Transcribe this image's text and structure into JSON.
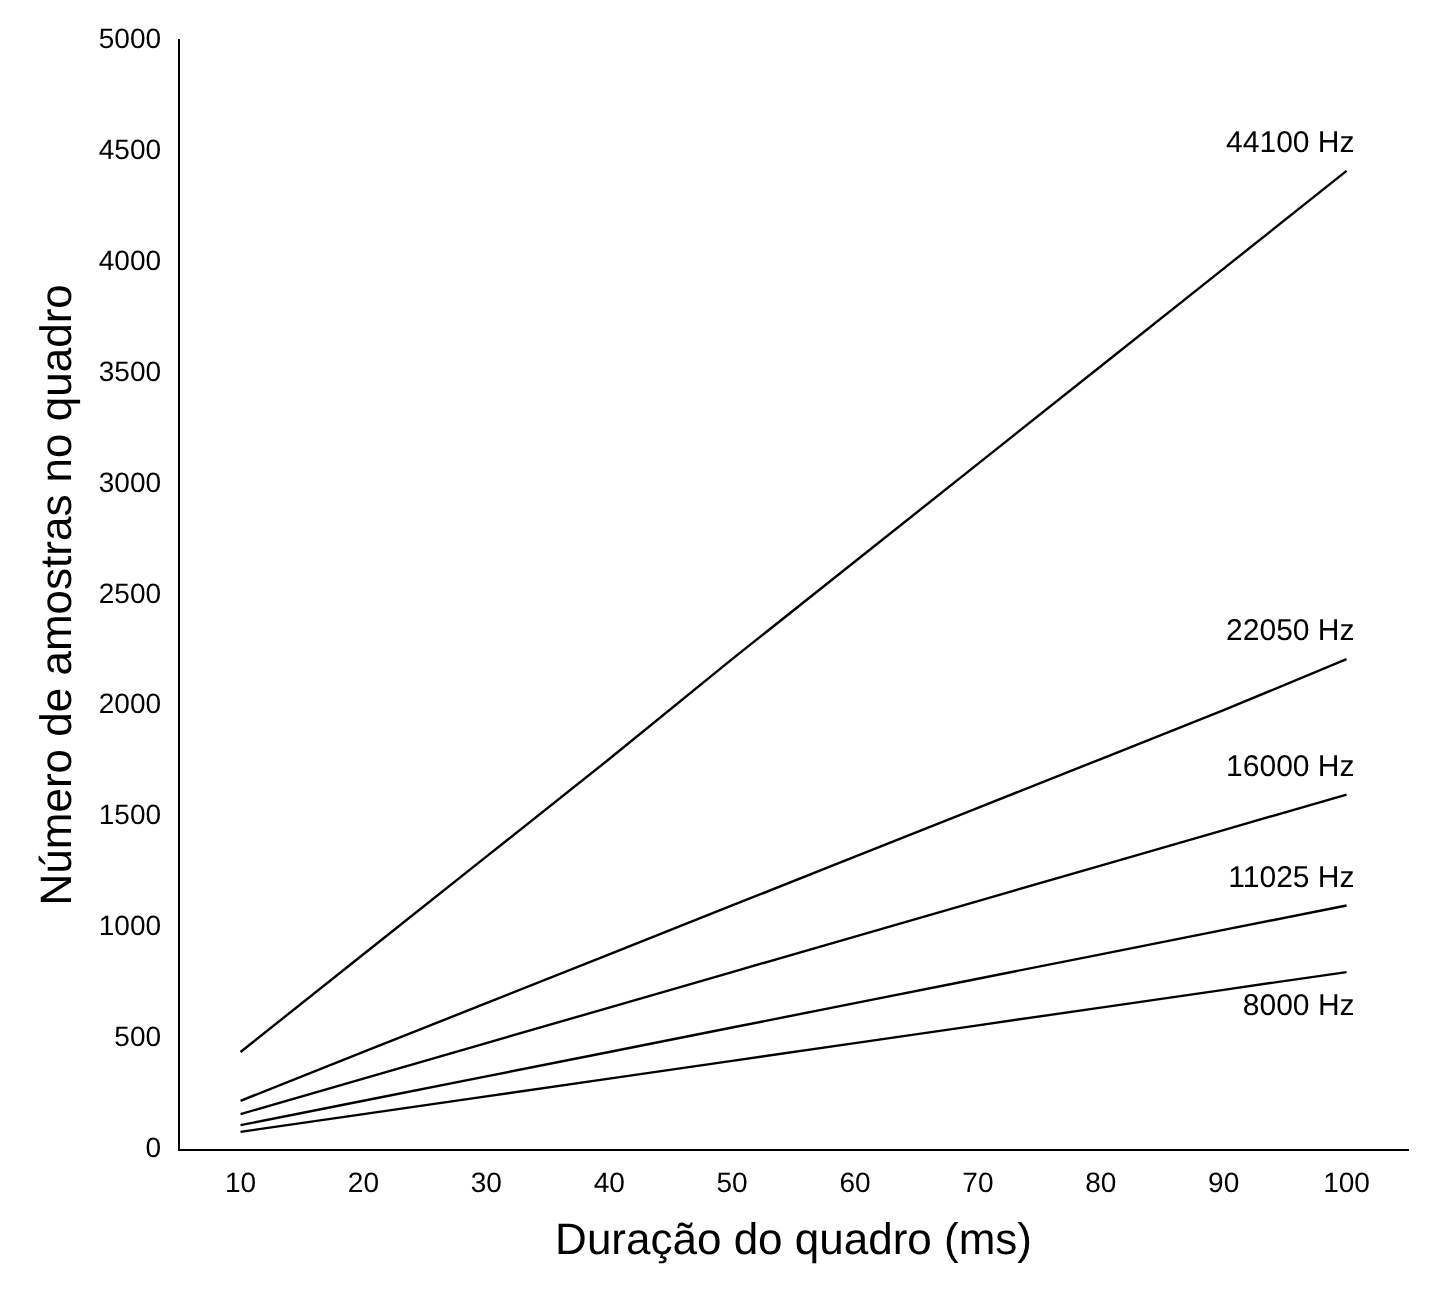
{
  "chart_data": {
    "type": "line",
    "xlabel": "Duração do quadro (ms)",
    "ylabel": "Número de amostras no quadro",
    "categories": [
      "10",
      "20",
      "30",
      "40",
      "50",
      "60",
      "70",
      "80",
      "90",
      "100"
    ],
    "ylim": [
      0,
      5000
    ],
    "yticks": [
      0,
      500,
      1000,
      1500,
      2000,
      2500,
      3000,
      3500,
      4000,
      4500,
      5000
    ],
    "grid": false,
    "legend": false,
    "marker": "none",
    "line_style": "solid",
    "series": [
      {
        "name": "44100 Hz",
        "color": "#000000",
        "values": [
          440,
          880,
          1320,
          1760,
          2210,
          2650,
          3090,
          3530,
          3970,
          4410
        ]
      },
      {
        "name": "22050 Hz",
        "color": "#000000",
        "values": [
          220,
          440,
          660,
          880,
          1100,
          1320,
          1540,
          1760,
          1980,
          2210
        ]
      },
      {
        "name": "16000 Hz",
        "color": "#000000",
        "values": [
          160,
          320,
          480,
          640,
          800,
          960,
          1120,
          1280,
          1440,
          1600
        ]
      },
      {
        "name": "11025 Hz",
        "color": "#000000",
        "values": [
          110,
          220,
          330,
          440,
          550,
          660,
          770,
          880,
          990,
          1100
        ]
      },
      {
        "name": "8000 Hz",
        "color": "#000000",
        "values": [
          80,
          160,
          240,
          320,
          400,
          480,
          560,
          640,
          720,
          800
        ]
      }
    ]
  }
}
